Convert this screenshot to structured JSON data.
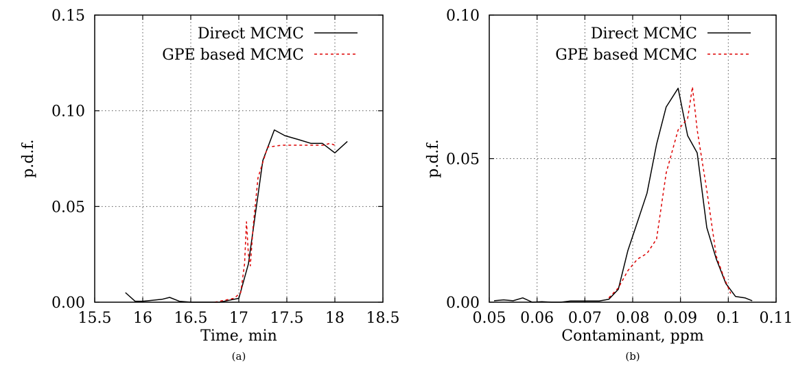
{
  "chart_data": [
    {
      "type": "line",
      "caption": "(a)",
      "xlabel": "Time, min",
      "ylabel": "p.d.f.",
      "xlim": [
        15.5,
        18.5
      ],
      "ylim": [
        0,
        0.15
      ],
      "xticks": [
        15.5,
        16,
        16.5,
        17,
        17.5,
        18,
        18.5
      ],
      "xtick_labels": [
        "15.5",
        "16",
        "16.5",
        "17",
        "17.5",
        "18",
        "18.5"
      ],
      "yticks": [
        0,
        0.05,
        0.1,
        0.15
      ],
      "ytick_labels": [
        "0.00",
        "0.05",
        "0.10",
        "0.15"
      ],
      "grid": true,
      "legend_position": "top-right",
      "series": [
        {
          "name": "Direct MCMC",
          "color": "#000000",
          "style": "solid",
          "x": [
            15.82,
            15.92,
            16.0,
            16.1,
            16.2,
            16.28,
            16.38,
            16.5,
            16.6,
            16.7,
            16.8,
            16.9,
            17.0,
            17.1,
            17.25,
            17.37,
            17.48,
            17.62,
            17.75,
            17.87,
            18.0,
            18.13
          ],
          "y": [
            0.005,
            0.0005,
            0.0005,
            0.001,
            0.0015,
            0.0025,
            0.0005,
            0.0,
            0.0,
            0.0,
            0.0,
            0.001,
            0.002,
            0.02,
            0.074,
            0.09,
            0.087,
            0.085,
            0.083,
            0.083,
            0.078,
            0.084
          ]
        },
        {
          "name": "GPE based MCMC",
          "color": "#dd0000",
          "style": "dashed",
          "x": [
            16.75,
            16.85,
            16.95,
            17.02,
            17.06,
            17.08,
            17.1,
            17.12,
            17.15,
            17.2,
            17.3,
            17.45,
            17.6,
            17.75,
            17.88,
            17.95,
            18.0
          ],
          "y": [
            0.0,
            0.001,
            0.002,
            0.005,
            0.02,
            0.042,
            0.025,
            0.019,
            0.04,
            0.065,
            0.081,
            0.082,
            0.082,
            0.082,
            0.082,
            0.083,
            0.082
          ]
        }
      ]
    },
    {
      "type": "line",
      "caption": "(b)",
      "xlabel": "Contaminant, ppm",
      "ylabel": "p.d.f.",
      "xlim": [
        0.05,
        0.11
      ],
      "ylim": [
        0,
        0.1
      ],
      "xticks": [
        0.05,
        0.06,
        0.07,
        0.08,
        0.09,
        0.1,
        0.11
      ],
      "xtick_labels": [
        "0.05",
        "0.06",
        "0.07",
        "0.08",
        "0.09",
        "0.1",
        "0.11"
      ],
      "yticks": [
        0,
        0.05,
        0.1
      ],
      "ytick_labels": [
        "0.00",
        "0.05",
        "0.10"
      ],
      "grid": true,
      "legend_position": "top-right",
      "series": [
        {
          "name": "Direct MCMC",
          "color": "#000000",
          "style": "solid",
          "x": [
            0.051,
            0.053,
            0.055,
            0.057,
            0.059,
            0.061,
            0.063,
            0.065,
            0.067,
            0.069,
            0.071,
            0.073,
            0.075,
            0.077,
            0.079,
            0.081,
            0.083,
            0.085,
            0.087,
            0.0895,
            0.0915,
            0.0935,
            0.0955,
            0.0975,
            0.0995,
            0.1015,
            0.1035,
            0.105
          ],
          "y": [
            0.0005,
            0.0008,
            0.0005,
            0.0015,
            0.0,
            0.0002,
            0.0,
            0.0,
            0.0004,
            0.0004,
            0.0004,
            0.0004,
            0.001,
            0.0045,
            0.018,
            0.028,
            0.038,
            0.055,
            0.068,
            0.0745,
            0.058,
            0.052,
            0.026,
            0.015,
            0.0065,
            0.002,
            0.0015,
            0.0005
          ]
        },
        {
          "name": "GPE based MCMC",
          "color": "#dd0000",
          "style": "dashed",
          "x": [
            0.075,
            0.077,
            0.079,
            0.081,
            0.083,
            0.085,
            0.087,
            0.0895,
            0.0915,
            0.0925,
            0.0935,
            0.0955,
            0.0975,
            0.099,
            0.1005
          ],
          "y": [
            0.0015,
            0.005,
            0.011,
            0.015,
            0.017,
            0.022,
            0.045,
            0.06,
            0.064,
            0.075,
            0.06,
            0.039,
            0.016,
            0.009,
            0.003
          ]
        }
      ]
    }
  ]
}
